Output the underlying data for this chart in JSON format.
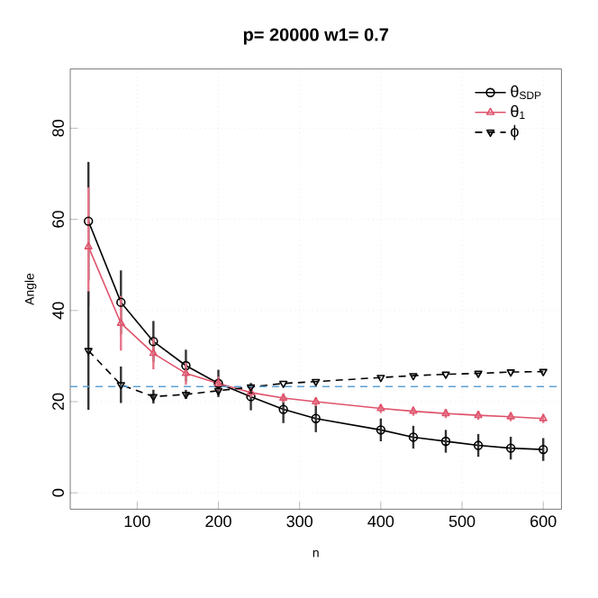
{
  "chart_data": {
    "type": "line",
    "title": "p= 20000 w1= 0.7",
    "xlabel": "n",
    "ylabel": "Angle",
    "x": [
      40,
      80,
      120,
      160,
      200,
      240,
      280,
      320,
      400,
      440,
      480,
      520,
      560,
      600
    ],
    "series": [
      {
        "name": "θ$_{SDP}$",
        "color": "#000000",
        "marker": "circle",
        "line_style": "solid",
        "values": [
          59.6,
          41.8,
          33.2,
          27.9,
          24.0,
          21.1,
          18.3,
          16.3,
          13.8,
          12.2,
          11.3,
          10.4,
          9.8,
          9.5
        ],
        "errors": [
          13,
          7,
          4.5,
          3.5,
          3,
          3,
          3,
          3,
          2.5,
          2.5,
          2.5,
          2.5,
          2.5,
          2.5
        ]
      },
      {
        "name": "θ$_{1}$",
        "color": "#df536b",
        "marker": "triangle",
        "line_style": "solid",
        "values": [
          54.0,
          37.2,
          30.6,
          26.2,
          24.0,
          22.0,
          20.8,
          20.0,
          18.5,
          17.9,
          17.4,
          17.0,
          16.7,
          16.3
        ],
        "errors": [
          13,
          6,
          3.5,
          2.5,
          1.5,
          1,
          1,
          1,
          1,
          1,
          1,
          1,
          1,
          1
        ]
      },
      {
        "name": "ϕ",
        "color": "#000000",
        "marker": "triangle down",
        "line_style": "dashed",
        "values": [
          31.2,
          23.7,
          21.1,
          21.6,
          22.4,
          23.2,
          24.0,
          24.4,
          25.3,
          25.7,
          26.0,
          26.2,
          26.5,
          26.6
        ],
        "errors": [
          13,
          4,
          1.5,
          1,
          null,
          null,
          null,
          null,
          null,
          null,
          null,
          null,
          null,
          null
        ]
      }
    ],
    "xlim": [
      17.6,
      622.4
    ],
    "ylim": [
      -3.6,
      93
    ],
    "xticks": [
      100,
      200,
      300,
      400,
      500,
      600
    ],
    "yticks": [
      0,
      20,
      40,
      60,
      80
    ],
    "ref_lines": [
      {
        "axis": "y",
        "value": 23.3,
        "color": "#5fa0d4",
        "line_style": "dashed"
      }
    ],
    "grid": true,
    "legend": "top right"
  }
}
